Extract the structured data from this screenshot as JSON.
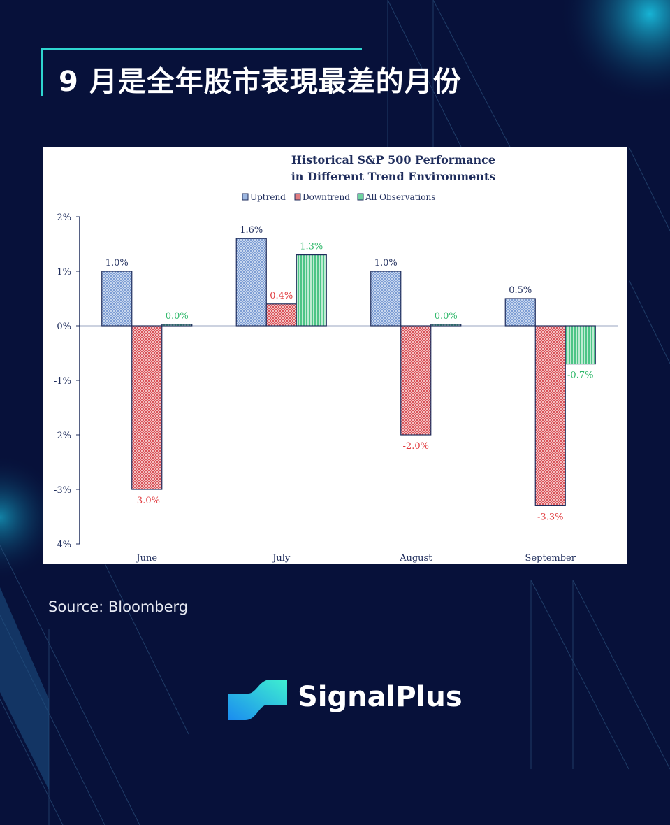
{
  "page_title": "9 月是全年股市表現最差的月份",
  "source": "Source: Bloomberg",
  "brand": {
    "name": "SignalPlus"
  },
  "colors": {
    "background": "#07113a",
    "accent": "#2fd6d0",
    "uptrend": "#9db7e0",
    "downtrend": "#e07c80",
    "all": "#6fd3a0",
    "axis": "#1f2d5c"
  },
  "chart_data": {
    "type": "bar",
    "title": "Historical S&P 500 Performance",
    "subtitle": "in Different Trend Environments",
    "categories": [
      "June",
      "July",
      "August",
      "September"
    ],
    "series": [
      {
        "name": "Uptrend",
        "values": [
          1.0,
          1.6,
          1.0,
          0.5
        ],
        "labels": [
          "1.0%",
          "1.6%",
          "1.0%",
          "0.5%"
        ],
        "label_color": "#1f2d5c"
      },
      {
        "name": "Downtrend",
        "values": [
          -3.0,
          0.4,
          -2.0,
          -3.3
        ],
        "labels": [
          "-3.0%",
          "0.4%",
          "-2.0%",
          "-3.3%"
        ],
        "label_color": "#e03a3e"
      },
      {
        "name": "All Observations",
        "values": [
          0.0,
          1.3,
          0.0,
          -0.7
        ],
        "labels": [
          "0.0%",
          "1.3%",
          "0.0%",
          "-0.7%"
        ],
        "label_color": "#2fb86a"
      }
    ],
    "ylim": [
      -4,
      2
    ],
    "yticks": [
      "2%",
      "1%",
      "0%",
      "-1%",
      "-2%",
      "-3%",
      "-4%"
    ],
    "ytick_values": [
      2,
      1,
      0,
      -1,
      -2,
      -3,
      -4
    ],
    "legend": "top",
    "grid": false
  }
}
